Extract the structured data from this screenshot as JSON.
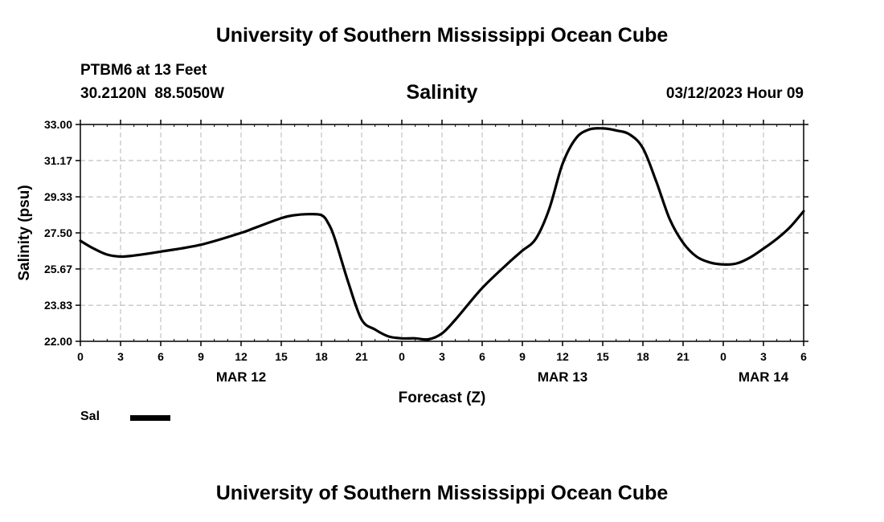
{
  "header": {
    "title": "University of Southern Mississippi Ocean Cube",
    "station": "PTBM6 at 13 Feet",
    "latitude": "30.2120N",
    "longitude": "88.5050W",
    "issue_time": "03/12/2023 Hour 09"
  },
  "footer": {
    "title": "University of Southern Mississippi Ocean Cube"
  },
  "legend": {
    "label": "Sal",
    "color": "#000000"
  },
  "chart_data": {
    "type": "line",
    "title": "Salinity",
    "xlabel": "Forecast (Z)",
    "ylabel": "Salinity (psu)",
    "x_unit": "hours from 00Z Mar 12",
    "xlim": [
      0,
      54
    ],
    "ylim": [
      22.0,
      33.0
    ],
    "grid": true,
    "yticks": [
      "22.00",
      "23.83",
      "25.67",
      "27.50",
      "29.33",
      "31.17",
      "33.00"
    ],
    "xticks": [
      "0",
      "3",
      "6",
      "9",
      "12",
      "15",
      "18",
      "21",
      "0",
      "3",
      "6",
      "9",
      "12",
      "15",
      "18",
      "21",
      "0",
      "3",
      "6"
    ],
    "date_labels": [
      {
        "hour": 12,
        "label": "MAR 12"
      },
      {
        "hour": 36,
        "label": "MAR 13"
      },
      {
        "hour": 51,
        "label": "MAR 14"
      }
    ],
    "series": [
      {
        "name": "Sal",
        "x": [
          0,
          1,
          2,
          3,
          4,
          6,
          9,
          12,
          13,
          15,
          16,
          17,
          18,
          18.5,
          19,
          20,
          21,
          22,
          23,
          24,
          25,
          26,
          27,
          28,
          30,
          32,
          33,
          34,
          35,
          36,
          37,
          38,
          39,
          40,
          41,
          42,
          43,
          44,
          45,
          46,
          47,
          48,
          49,
          50,
          51,
          52,
          53,
          54
        ],
        "values": [
          27.1,
          26.7,
          26.4,
          26.3,
          26.35,
          26.55,
          26.9,
          27.5,
          27.75,
          28.25,
          28.4,
          28.45,
          28.4,
          28.0,
          27.2,
          25.0,
          23.1,
          22.6,
          22.25,
          22.15,
          22.15,
          22.1,
          22.4,
          23.1,
          24.7,
          26.0,
          26.6,
          27.2,
          28.7,
          31.0,
          32.3,
          32.75,
          32.8,
          32.7,
          32.5,
          31.8,
          30.1,
          28.2,
          27.0,
          26.3,
          26.0,
          25.9,
          25.95,
          26.25,
          26.7,
          27.2,
          27.8,
          28.6
        ]
      }
    ]
  }
}
